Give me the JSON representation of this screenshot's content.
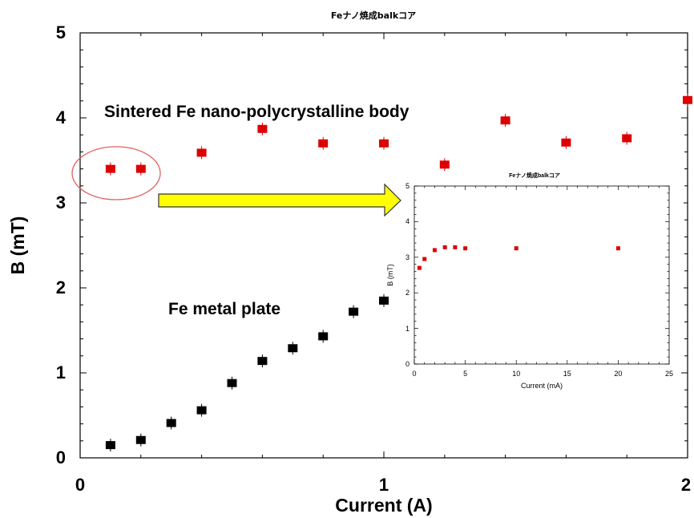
{
  "chart_data": [
    {
      "type": "scatter",
      "title": "Feナノ焼成balkコア",
      "xlabel": "Current (A)",
      "ylabel": "B (mT)",
      "xlim": [
        0,
        2
      ],
      "ylim": [
        0,
        5
      ],
      "xticks": [
        "0",
        "1",
        "2"
      ],
      "yticks": [
        "0",
        "1",
        "2",
        "3",
        "4",
        "5"
      ],
      "grid": false,
      "series": [
        {
          "name": "Sintered Fe nano-polycrystalline body",
          "color": "#dd0000",
          "marker": "square",
          "points": [
            [
              0.1,
              3.4
            ],
            [
              0.2,
              3.4
            ],
            [
              0.4,
              3.59
            ],
            [
              0.6,
              3.87
            ],
            [
              0.8,
              3.7
            ],
            [
              1.0,
              3.7
            ],
            [
              1.2,
              3.45
            ],
            [
              1.4,
              3.97
            ],
            [
              1.6,
              3.71
            ],
            [
              1.8,
              3.76
            ],
            [
              2.0,
              4.21
            ]
          ]
        },
        {
          "name": "Fe metal plate",
          "color": "#000000",
          "marker": "square",
          "points": [
            [
              0.1,
              0.15
            ],
            [
              0.2,
              0.21
            ],
            [
              0.3,
              0.41
            ],
            [
              0.4,
              0.56
            ],
            [
              0.5,
              0.88
            ],
            [
              0.6,
              1.14
            ],
            [
              0.7,
              1.29
            ],
            [
              0.8,
              1.43
            ],
            [
              0.9,
              1.72
            ],
            [
              1.0,
              1.85
            ]
          ]
        }
      ],
      "annotations": [
        "Sintered Fe nano-polycrystalline body",
        "Fe metal plate"
      ]
    },
    {
      "type": "scatter",
      "title": "Feナノ焼成balkコア",
      "xlabel": "Current (mA)",
      "ylabel": "B (mT)",
      "xlim": [
        0,
        25
      ],
      "ylim": [
        0,
        5
      ],
      "xticks": [
        "0",
        "5",
        "10",
        "15",
        "20",
        "25"
      ],
      "yticks": [
        "0",
        "1",
        "2",
        "3",
        "4",
        "5"
      ],
      "grid": false,
      "series": [
        {
          "color": "#dd0000",
          "marker": "square",
          "points": [
            [
              0.5,
              2.7
            ],
            [
              1.0,
              2.95
            ],
            [
              2.0,
              3.2
            ],
            [
              3.0,
              3.28
            ],
            [
              4.0,
              3.28
            ],
            [
              5.0,
              3.25
            ],
            [
              10.0,
              3.25
            ],
            [
              20.0,
              3.25
            ]
          ]
        }
      ]
    }
  ],
  "colors": {
    "highlight_ellipse": "#e06060",
    "arrow_fill": "#ffff00",
    "arrow_stroke": "#333333"
  }
}
